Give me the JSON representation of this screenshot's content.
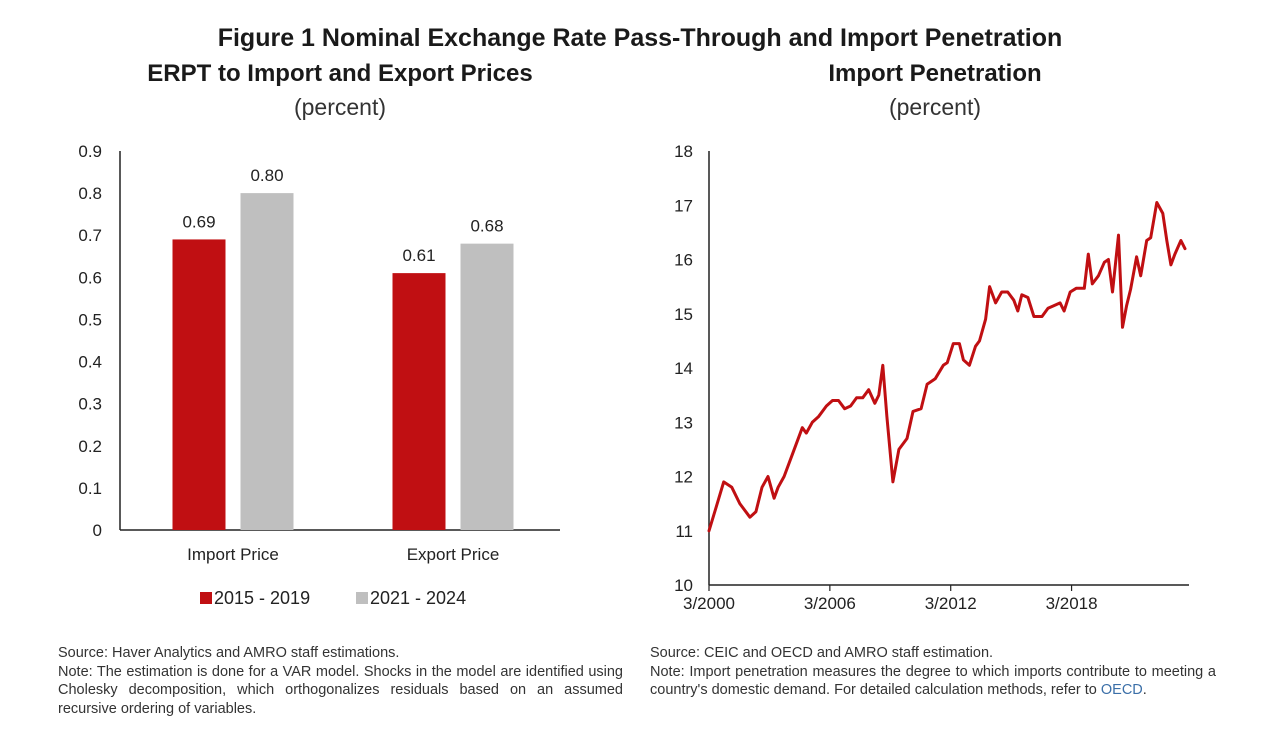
{
  "figure_title": "Figure 1 Nominal Exchange Rate Pass-Through and Import Penetration",
  "colors": {
    "series1": "#c00f12",
    "series2": "#bfbfbf",
    "line": "#c00f12",
    "axis": "#222222",
    "link": "#3b6fa8"
  },
  "chart_data": [
    {
      "type": "bar",
      "title": "ERPT to Import and Export Prices",
      "subtitle": "(percent)",
      "categories": [
        "Import Price",
        "Export Price"
      ],
      "series": [
        {
          "name": "2015 - 2019",
          "values": [
            0.69,
            0.61
          ],
          "labels": [
            "0.69",
            "0.61"
          ]
        },
        {
          "name": "2021 - 2024",
          "values": [
            0.8,
            0.68
          ],
          "labels": [
            "0.80",
            "0.68"
          ]
        }
      ],
      "xlabel": "",
      "ylabel": "",
      "ylim": [
        0,
        0.9
      ],
      "yticks": [
        "0",
        "0.1",
        "0.2",
        "0.3",
        "0.4",
        "0.5",
        "0.6",
        "0.7",
        "0.8",
        "0.9"
      ],
      "grid": false,
      "legend": "bottom"
    },
    {
      "type": "line",
      "title": "Import Penetration",
      "subtitle": "(percent)",
      "xlabel": "",
      "ylabel": "",
      "ylim": [
        10,
        18
      ],
      "yticks": [
        "10",
        "11",
        "12",
        "13",
        "14",
        "15",
        "16",
        "17",
        "18"
      ],
      "xlim": [
        2000.17,
        2024.0
      ],
      "xticks": [
        {
          "x": 2000.17,
          "label": "3/2000"
        },
        {
          "x": 2006.17,
          "label": "3/2006"
        },
        {
          "x": 2012.17,
          "label": "3/2012"
        },
        {
          "x": 2018.17,
          "label": "3/2018"
        }
      ],
      "grid": false,
      "legend": "none",
      "series": [
        {
          "name": "Import Penetration",
          "x": [
            2000.17,
            2000.5,
            2000.9,
            2001.3,
            2001.7,
            2002.2,
            2002.5,
            2002.8,
            2003.1,
            2003.4,
            2003.6,
            2003.9,
            2004.3,
            2004.8,
            2005.0,
            2005.3,
            2005.6,
            2006.0,
            2006.3,
            2006.6,
            2006.9,
            2007.2,
            2007.5,
            2007.8,
            2008.1,
            2008.4,
            2008.6,
            2008.8,
            2009.0,
            2009.3,
            2009.6,
            2010.0,
            2010.3,
            2010.7,
            2011.0,
            2011.4,
            2011.8,
            2012.0,
            2012.3,
            2012.6,
            2012.8,
            2013.1,
            2013.4,
            2013.6,
            2013.9,
            2014.1,
            2014.4,
            2014.7,
            2015.0,
            2015.3,
            2015.5,
            2015.7,
            2016.0,
            2016.3,
            2016.7,
            2017.0,
            2017.3,
            2017.6,
            2017.8,
            2018.1,
            2018.4,
            2018.8,
            2019.0,
            2019.2,
            2019.5,
            2019.8,
            2020.0,
            2020.2,
            2020.5,
            2020.7,
            2020.9,
            2021.1,
            2021.4,
            2021.6,
            2021.9,
            2022.1,
            2022.4,
            2022.7,
            2022.9,
            2023.1,
            2023.3,
            2023.6,
            2023.8
          ],
          "y": [
            11.0,
            11.4,
            11.9,
            11.8,
            11.5,
            11.25,
            11.35,
            11.8,
            12.0,
            11.6,
            11.8,
            12.0,
            12.4,
            12.9,
            12.8,
            13.0,
            13.1,
            13.3,
            13.4,
            13.4,
            13.25,
            13.3,
            13.45,
            13.45,
            13.6,
            13.35,
            13.5,
            14.05,
            13.1,
            11.9,
            12.5,
            12.7,
            13.2,
            13.25,
            13.7,
            13.8,
            14.05,
            14.1,
            14.45,
            14.45,
            14.15,
            14.05,
            14.4,
            14.5,
            14.9,
            15.5,
            15.2,
            15.4,
            15.4,
            15.25,
            15.05,
            15.35,
            15.3,
            14.95,
            14.95,
            15.1,
            15.15,
            15.2,
            15.05,
            15.4,
            15.47,
            15.47,
            16.1,
            15.55,
            15.7,
            15.95,
            16.0,
            15.4,
            16.45,
            14.75,
            15.15,
            15.45,
            16.05,
            15.7,
            16.35,
            16.4,
            17.05,
            16.85,
            16.35,
            15.9,
            16.1,
            16.35,
            16.2
          ]
        }
      ]
    }
  ],
  "left_panel": {
    "title": "ERPT to Import and Export Prices",
    "unit": "(percent)",
    "source": "Source: Haver Analytics and AMRO staff estimations.",
    "note": "Note: The estimation is done for a VAR model. Shocks in the model are identified using Cholesky decomposition, which orthogonalizes residuals based on an assumed recursive ordering of variables."
  },
  "right_panel": {
    "title": "Import Penetration",
    "unit": "(percent)",
    "source": "Source: CEIC and OECD and AMRO staff estimation.",
    "note_prefix": "Note: Import penetration measures the degree to which imports contribute to meeting a country's domestic demand. For detailed calculation methods, refer to ",
    "note_link": "OECD",
    "note_suffix": "."
  }
}
